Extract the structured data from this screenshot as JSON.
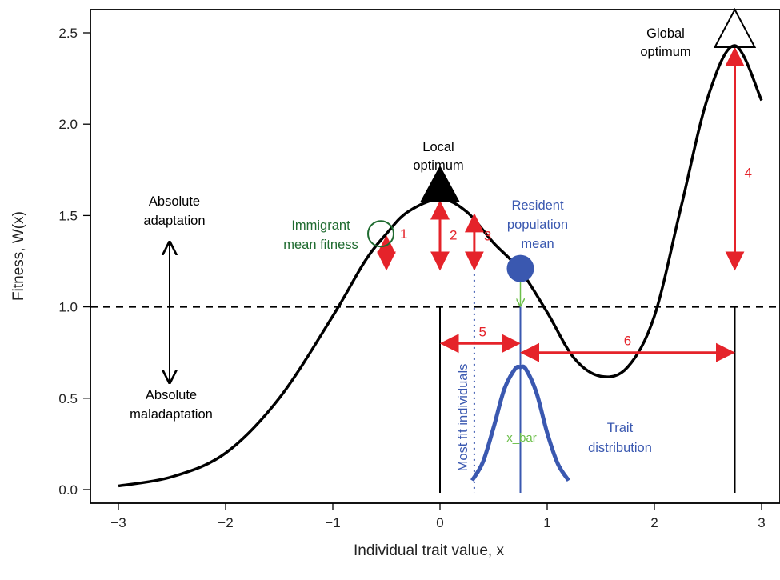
{
  "colors": {
    "curve": "#000000",
    "red_arrows": "#e5232a",
    "blue": "#3a58b0",
    "green_circle": "#1f6b30",
    "green_text": "#1f6b30",
    "light_green": "#6cbf4a"
  },
  "chart_data": {
    "type": "line",
    "title": "",
    "xlabel": "Individual trait value, x",
    "ylabel": "Fitness, W(x)",
    "xlim": [
      -3.25,
      3.15
    ],
    "ylim": [
      -0.05,
      2.75
    ],
    "xticks": [
      -3,
      -2,
      -1,
      0,
      1,
      2,
      3
    ],
    "xtick_labels": [
      "−3",
      "−2",
      "−1",
      "0",
      "1",
      "2",
      "3"
    ],
    "yticks": [
      0.0,
      0.5,
      1.0,
      1.5,
      2.0,
      2.5
    ],
    "ytick_labels": [
      "0.0",
      "0.5",
      "1.0",
      "1.5",
      "2.0",
      "2.5"
    ],
    "grid": false,
    "fitness_curve": {
      "x": [
        -3.0,
        -2.5,
        -2.0,
        -1.5,
        -1.0,
        -0.7,
        -0.5,
        -0.3,
        0.0,
        0.25,
        0.5,
        0.75,
        1.0,
        1.25,
        1.5,
        1.75,
        2.0,
        2.25,
        2.5,
        2.75,
        3.0
      ],
      "y": [
        0.02,
        0.07,
        0.2,
        0.5,
        0.95,
        1.25,
        1.4,
        1.52,
        1.59,
        1.52,
        1.35,
        1.2,
        0.97,
        0.72,
        0.62,
        0.67,
        0.95,
        1.55,
        2.15,
        2.43,
        2.13
      ]
    },
    "threshold_y": 1.0,
    "trait_distribution": {
      "x": [
        0.3,
        0.4,
        0.5,
        0.6,
        0.7,
        0.75,
        0.8,
        0.9,
        1.0,
        1.1,
        1.2
      ],
      "y": [
        0.05,
        0.15,
        0.34,
        0.55,
        0.66,
        0.67,
        0.66,
        0.53,
        0.31,
        0.14,
        0.05
      ]
    },
    "markers": {
      "local_optimum": {
        "x": 0.0,
        "y": 1.59
      },
      "global_optimum": {
        "x": 2.75,
        "y": 2.43
      },
      "immigrant_mean": {
        "x": -0.5,
        "y": 1.4
      },
      "resident_mean": {
        "x": 0.75,
        "y": 1.21
      }
    },
    "vertical_lines": {
      "local_optimum_x": 0.0,
      "global_optimum_x": 2.75,
      "resident_mean_x": 0.75,
      "most_fit_x": 0.32
    },
    "red_arrows": [
      {
        "label": "1",
        "x": -0.5,
        "y_top": 1.4,
        "y_bottom": 1.2
      },
      {
        "label": "2",
        "x": 0.0,
        "y_top": 1.59,
        "y_bottom": 1.2
      },
      {
        "label": "3",
        "x": 0.32,
        "y_top": 1.52,
        "y_bottom": 1.2
      },
      {
        "label": "4",
        "x": 2.75,
        "y_top": 2.43,
        "y_bottom": 1.2
      }
    ],
    "horizontal_arrows": [
      {
        "label": "5",
        "x_from": 0.0,
        "x_to": 0.75,
        "y": 0.8
      },
      {
        "label": "6",
        "x_from": 0.75,
        "x_to": 2.75,
        "y": 0.75
      }
    ],
    "annotations": {
      "global_optimum_line1": "Global",
      "global_optimum_line2": "optimum",
      "local_optimum_line1": "Local",
      "local_optimum_line2": "optimum",
      "resident_line1": "Resident",
      "resident_line2": "population",
      "resident_line3": "mean",
      "immigrant_line1": "Immigrant",
      "immigrant_line2": "mean fitness",
      "abs_adapt_line1": "Absolute",
      "abs_adapt_line2": "adaptation",
      "abs_mal_line1": "Absolute",
      "abs_mal_line2": "maladaptation",
      "trait_dist_line1": "Trait",
      "trait_dist_line2": "distribution",
      "most_fit": "Most fit individuals",
      "x_bar": "x_bar"
    }
  }
}
